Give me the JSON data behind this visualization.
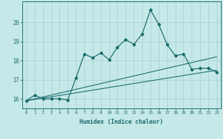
{
  "xlabel": "Humidex (Indice chaleur)",
  "bg_color": "#c5e8e8",
  "grid_color": "#a8cccc",
  "line_color": "#1a6b6b",
  "xlim": [
    -0.5,
    23.5
  ],
  "ylim": [
    15.5,
    21.1
  ],
  "yticks": [
    16,
    17,
    18,
    19,
    20
  ],
  "xticks": [
    0,
    1,
    2,
    3,
    4,
    5,
    6,
    7,
    8,
    9,
    10,
    11,
    12,
    13,
    14,
    15,
    16,
    17,
    18,
    19,
    20,
    21,
    22,
    23
  ],
  "main_x": [
    0,
    1,
    2,
    3,
    4,
    5,
    6,
    7,
    8,
    9,
    10,
    11,
    12,
    13,
    14,
    15,
    16,
    17,
    18,
    19,
    20,
    21,
    22,
    23
  ],
  "main_y": [
    15.9,
    16.2,
    16.0,
    16.0,
    16.0,
    15.95,
    17.1,
    18.35,
    18.15,
    18.4,
    18.05,
    18.7,
    19.1,
    18.85,
    19.4,
    20.65,
    19.9,
    18.85,
    18.25,
    18.35,
    17.55,
    17.6,
    17.6,
    17.4
  ],
  "line2_x": [
    0,
    23
  ],
  "line2_y": [
    15.9,
    17.5
  ],
  "line3_x": [
    0,
    23
  ],
  "line3_y": [
    15.9,
    18.2
  ]
}
